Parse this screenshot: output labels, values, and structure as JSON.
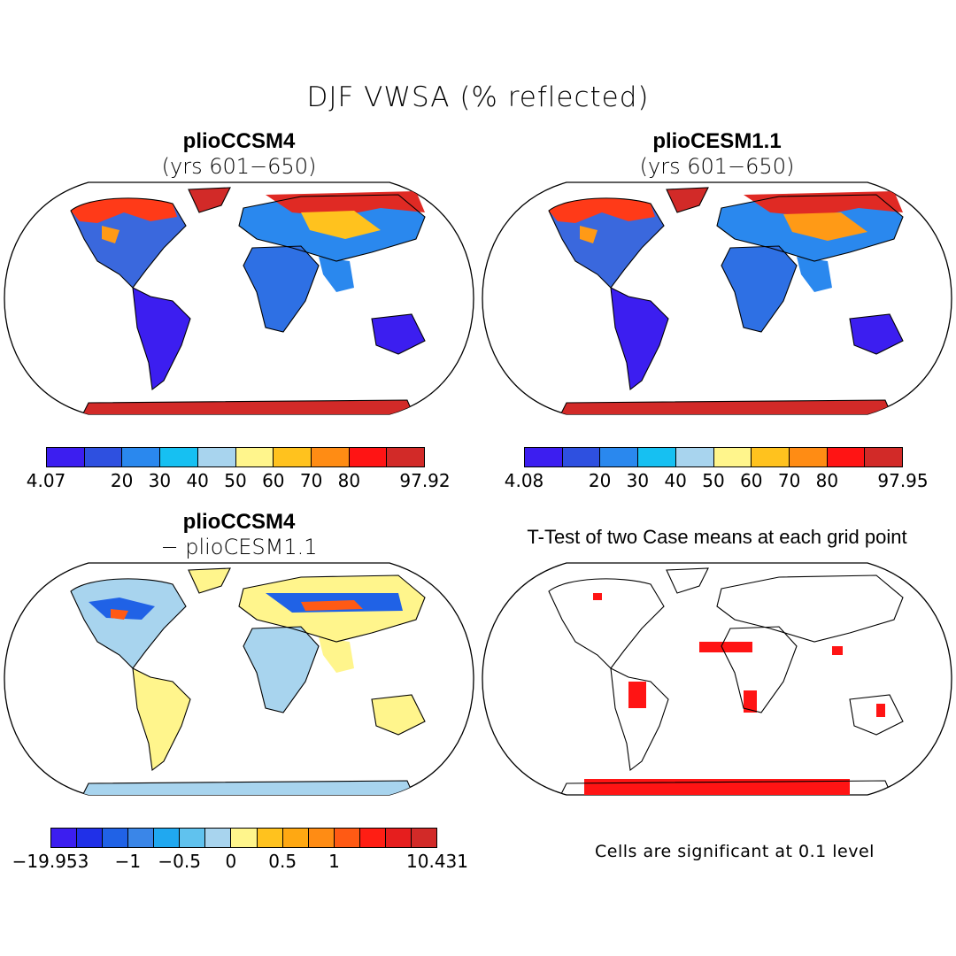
{
  "title": "DJF VWSA (% reflected)",
  "panels": {
    "p1": {
      "title": "plioCCSM4",
      "subtitle": "(yrs 601−650)"
    },
    "p2": {
      "title": "plioCESM1.1",
      "subtitle": "(yrs 601−650)"
    },
    "p3": {
      "title": "plioCCSM4",
      "subtitle": "− plioCESM1.1"
    },
    "p4": {
      "title": "T-Test of two Case means at each grid point",
      "note": "Cells are significant at 0.1 level"
    }
  },
  "colorbars": {
    "cb1": {
      "colors": [
        "#3c1ef0",
        "#2e50e0",
        "#2a88ee",
        "#16c0f2",
        "#a8d4ee",
        "#fff58c",
        "#ffc21e",
        "#ff8c14",
        "#ff1414",
        "#d22a28"
      ],
      "labels": [
        "4.07",
        "20",
        "30",
        "40",
        "50",
        "60",
        "70",
        "80",
        "97.92"
      ]
    },
    "cb2": {
      "colors": [
        "#3c1ef0",
        "#2e50e0",
        "#2a88ee",
        "#16c0f2",
        "#a8d4ee",
        "#fff58c",
        "#ffc21e",
        "#ff8c14",
        "#ff1414",
        "#d22a28"
      ],
      "labels": [
        "4.08",
        "20",
        "30",
        "40",
        "50",
        "60",
        "70",
        "80",
        "97.95"
      ]
    },
    "cb3": {
      "colors": [
        "#3c1ef0",
        "#2030e8",
        "#2062e6",
        "#3a86e8",
        "#20a8f0",
        "#60c2ee",
        "#a8d4ee",
        "#fff58c",
        "#ffc21e",
        "#ffa812",
        "#ff8c14",
        "#ff5a14",
        "#ff1e14",
        "#e61e1e",
        "#d22a28"
      ],
      "labels": [
        "−19.953",
        "−1",
        "−0.5",
        "0",
        "0.5",
        "1",
        "10.431"
      ]
    }
  }
}
